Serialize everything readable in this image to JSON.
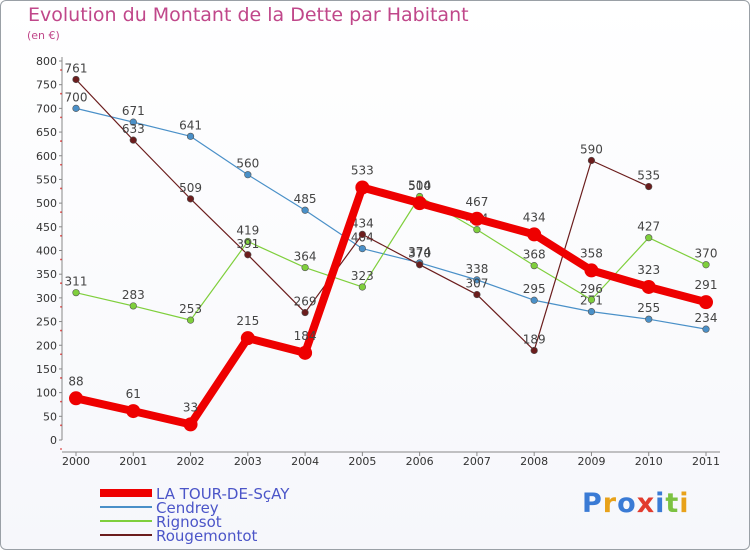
{
  "title": "Evolution du Montant de la Dette par Habitant",
  "subtitle": "(en €)",
  "logo": "Proxiti",
  "chart_data": {
    "type": "line",
    "x": [
      "2000",
      "2001",
      "2002",
      "2003",
      "2004",
      "2005",
      "2006",
      "2007",
      "2008",
      "2009",
      "2010",
      "2011"
    ],
    "ylim": [
      0,
      800
    ],
    "yticks": [
      0,
      50,
      100,
      150,
      200,
      250,
      300,
      350,
      400,
      450,
      500,
      550,
      600,
      650,
      700,
      750,
      800
    ],
    "grid": false,
    "legend_position": "bottom-left",
    "series": [
      {
        "name": "LA TOUR-DE-SçAY",
        "color": "#ee0000",
        "values": [
          88,
          61,
          33,
          215,
          184,
          533,
          500,
          467,
          434,
          358,
          323,
          291
        ]
      },
      {
        "name": "Cendrey",
        "color": "#4a90c8",
        "values": [
          700,
          671,
          641,
          560,
          485,
          404,
          374,
          338,
          295,
          271,
          255,
          234
        ]
      },
      {
        "name": "Rignosot",
        "color": "#7fcf3c",
        "values": [
          311,
          283,
          253,
          419,
          364,
          323,
          514,
          444,
          368,
          296,
          427,
          370
        ]
      },
      {
        "name": "Rougemontot",
        "color": "#6b1d1d",
        "values": [
          761,
          633,
          509,
          391,
          269,
          434,
          370,
          307,
          189,
          590,
          535,
          null
        ]
      }
    ]
  }
}
